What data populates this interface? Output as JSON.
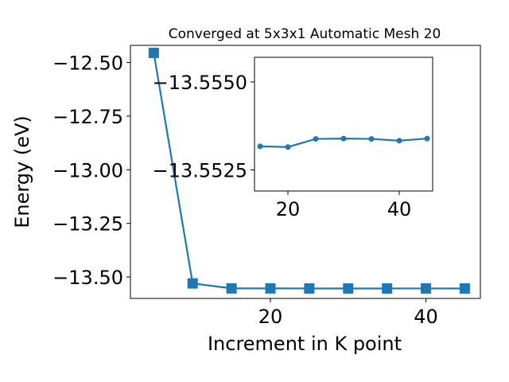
{
  "colors": {
    "series": "#1f77b4",
    "axes": "#000000",
    "background": "#ffffff"
  },
  "chart_data": [
    {
      "type": "line",
      "title": "Converged at 5x3x1 Automatic Mesh 20",
      "xlabel": "Increment in K point",
      "ylabel": "Energy (eV)",
      "xlim": [
        2.0,
        47.0
      ],
      "ylim": [
        -13.6,
        -12.42
      ],
      "xticks": [
        20,
        40
      ],
      "xtick_labels": [
        "20",
        "40"
      ],
      "yticks": [
        -12.5,
        -12.75,
        -13.0,
        -13.25,
        -13.5
      ],
      "ytick_labels": [
        "−12.50",
        "−12.75",
        "−13.00",
        "−13.25",
        "−13.50"
      ],
      "marker": "square",
      "series": [
        {
          "x": [
            5,
            10,
            15,
            20,
            25,
            30,
            35,
            40,
            45
          ],
          "y": [
            -12.455,
            -13.53,
            -13.5532,
            -13.5532,
            -13.5535,
            -13.5535,
            -13.5535,
            -13.5534,
            -13.5535
          ]
        }
      ],
      "grid": false,
      "legend": "none"
    },
    {
      "type": "line",
      "title": "",
      "xlabel": "",
      "ylabel": "",
      "xlim": [
        14.0,
        46.0
      ],
      "ylim": [
        -13.5519,
        -13.5557
      ],
      "xticks": [
        20,
        40
      ],
      "xtick_labels": [
        "20",
        "40"
      ],
      "yticks": [
        -13.555,
        -13.5525
      ],
      "ytick_labels": [
        "−13.5550",
        "−13.5525"
      ],
      "marker": "circle",
      "series": [
        {
          "x": [
            15,
            20,
            25,
            30,
            35,
            40,
            45
          ],
          "y": [
            -13.55317,
            -13.55315,
            -13.55338,
            -13.55339,
            -13.55338,
            -13.55333,
            -13.55339
          ]
        }
      ],
      "grid": false,
      "legend": "none"
    }
  ]
}
